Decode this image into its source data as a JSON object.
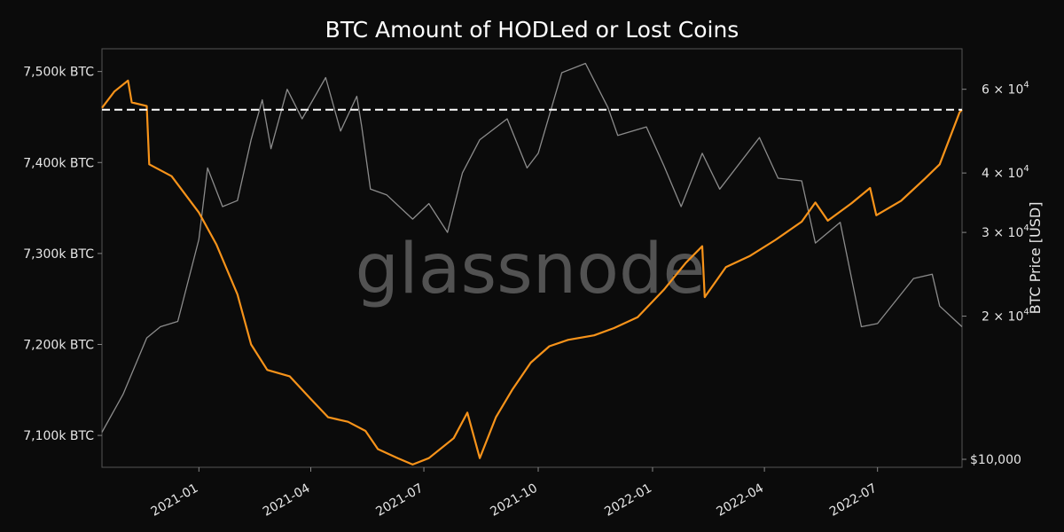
{
  "chart_data": {
    "type": "line",
    "title": "BTC Amount of HODLed or Lost Coins",
    "watermark": "glassnode",
    "x_range": [
      "2020-10-15",
      "2022-09-07"
    ],
    "x_ticks": [
      "2021-01",
      "2021-04",
      "2021-07",
      "2021-10",
      "2022-01",
      "2022-04",
      "2022-07"
    ],
    "y_left": {
      "range": [
        7065,
        7525
      ],
      "ticks": [
        {
          "value": 7100,
          "label": "7,100k BTC"
        },
        {
          "value": 7200,
          "label": "7,200k BTC"
        },
        {
          "value": 7300,
          "label": "7,300k BTC"
        },
        {
          "value": 7400,
          "label": "7,400k BTC"
        },
        {
          "value": 7500,
          "label": "7,500k BTC"
        }
      ]
    },
    "y_right": {
      "label": "BTC Price [USD]",
      "scale": "log",
      "range": [
        10000,
        73000
      ],
      "ticks": [
        {
          "value": 10000,
          "label": "$10,000"
        },
        {
          "value": 20000,
          "base": "2 × 10",
          "exp": "4"
        },
        {
          "value": 30000,
          "base": "3 × 10",
          "exp": "4"
        },
        {
          "value": 40000,
          "base": "4 × 10",
          "exp": "4"
        },
        {
          "value": 60000,
          "base": "6 × 10",
          "exp": "4"
        }
      ]
    },
    "reference_line": {
      "axis": "left",
      "value": 7458,
      "style": "dashed"
    },
    "series": [
      {
        "color": "#f7931a",
        "axis": "left",
        "points": [
          [
            "2020-10-15",
            7460
          ],
          [
            "2020-10-25",
            7478
          ],
          [
            "2020-11-05",
            7490
          ],
          [
            "2020-11-08",
            7466
          ],
          [
            "2020-11-20",
            7462
          ],
          [
            "2020-11-22",
            7398
          ],
          [
            "2020-12-10",
            7385
          ],
          [
            "2021-01-01",
            7345
          ],
          [
            "2021-01-15",
            7310
          ],
          [
            "2021-02-01",
            7255
          ],
          [
            "2021-02-12",
            7200
          ],
          [
            "2021-02-25",
            7172
          ],
          [
            "2021-03-15",
            7165
          ],
          [
            "2021-04-01",
            7140
          ],
          [
            "2021-04-15",
            7120
          ],
          [
            "2021-05-01",
            7115
          ],
          [
            "2021-05-15",
            7105
          ],
          [
            "2021-05-25",
            7085
          ],
          [
            "2021-06-10",
            7075
          ],
          [
            "2021-06-22",
            7068
          ],
          [
            "2021-07-05",
            7075
          ],
          [
            "2021-07-25",
            7097
          ],
          [
            "2021-08-05",
            7125
          ],
          [
            "2021-08-15",
            7075
          ],
          [
            "2021-08-28",
            7120
          ],
          [
            "2021-09-10",
            7150
          ],
          [
            "2021-09-25",
            7180
          ],
          [
            "2021-10-10",
            7198
          ],
          [
            "2021-10-25",
            7205
          ],
          [
            "2021-11-15",
            7210
          ],
          [
            "2021-12-01",
            7218
          ],
          [
            "2021-12-20",
            7230
          ],
          [
            "2022-01-10",
            7260
          ],
          [
            "2022-01-28",
            7290
          ],
          [
            "2022-02-10",
            7308
          ],
          [
            "2022-02-12",
            7252
          ],
          [
            "2022-03-01",
            7285
          ],
          [
            "2022-03-20",
            7297
          ],
          [
            "2022-04-10",
            7315
          ],
          [
            "2022-05-01",
            7335
          ],
          [
            "2022-05-12",
            7356
          ],
          [
            "2022-05-22",
            7336
          ],
          [
            "2022-06-10",
            7355
          ],
          [
            "2022-06-25",
            7372
          ],
          [
            "2022-06-30",
            7342
          ],
          [
            "2022-07-20",
            7358
          ],
          [
            "2022-08-08",
            7382
          ],
          [
            "2022-08-20",
            7398
          ],
          [
            "2022-09-05",
            7455
          ],
          [
            "2022-09-07",
            7458
          ]
        ]
      },
      {
        "color": "#8c8c8c",
        "axis": "right",
        "points": [
          [
            "2020-10-15",
            11400
          ],
          [
            "2020-11-01",
            13700
          ],
          [
            "2020-11-20",
            18000
          ],
          [
            "2020-12-01",
            19000
          ],
          [
            "2020-12-15",
            19500
          ],
          [
            "2021-01-01",
            29000
          ],
          [
            "2021-01-08",
            41000
          ],
          [
            "2021-01-20",
            34000
          ],
          [
            "2021-02-01",
            35000
          ],
          [
            "2021-02-12",
            47000
          ],
          [
            "2021-02-21",
            57000
          ],
          [
            "2021-02-28",
            45000
          ],
          [
            "2021-03-13",
            60000
          ],
          [
            "2021-03-25",
            52000
          ],
          [
            "2021-04-13",
            63500
          ],
          [
            "2021-04-25",
            49000
          ],
          [
            "2021-05-08",
            58000
          ],
          [
            "2021-05-12",
            50000
          ],
          [
            "2021-05-19",
            37000
          ],
          [
            "2021-06-01",
            36000
          ],
          [
            "2021-06-22",
            32000
          ],
          [
            "2021-07-05",
            34500
          ],
          [
            "2021-07-20",
            30000
          ],
          [
            "2021-08-01",
            40000
          ],
          [
            "2021-08-15",
            47000
          ],
          [
            "2021-09-06",
            52000
          ],
          [
            "2021-09-22",
            41000
          ],
          [
            "2021-10-01",
            44000
          ],
          [
            "2021-10-20",
            65000
          ],
          [
            "2021-11-08",
            68000
          ],
          [
            "2021-11-26",
            55000
          ],
          [
            "2021-12-04",
            48000
          ],
          [
            "2021-12-27",
            50000
          ],
          [
            "2022-01-10",
            41500
          ],
          [
            "2022-01-24",
            34000
          ],
          [
            "2022-02-10",
            44000
          ],
          [
            "2022-02-24",
            37000
          ],
          [
            "2022-03-28",
            47500
          ],
          [
            "2022-04-12",
            39000
          ],
          [
            "2022-05-01",
            38500
          ],
          [
            "2022-05-12",
            28500
          ],
          [
            "2022-06-01",
            31500
          ],
          [
            "2022-06-18",
            19000
          ],
          [
            "2022-07-01",
            19300
          ],
          [
            "2022-07-30",
            24000
          ],
          [
            "2022-08-14",
            24500
          ],
          [
            "2022-08-20",
            21000
          ],
          [
            "2022-09-07",
            19000
          ]
        ]
      }
    ]
  }
}
